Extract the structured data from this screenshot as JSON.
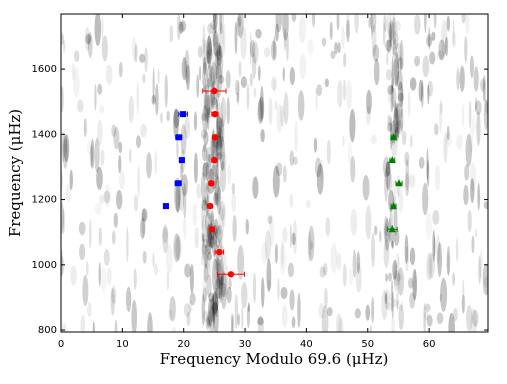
{
  "chart_data": {
    "type": "scatter",
    "xlabel": "Frequency Modulo 69.6 (μHz)",
    "ylabel": "Frequency (μHz)",
    "xlim": [
      0,
      69.6
    ],
    "xticks": [
      0,
      10,
      20,
      30,
      40,
      50,
      60
    ],
    "ylim": [
      794,
      1769
    ],
    "yticks": [
      800,
      1000,
      1200,
      1400,
      1600
    ],
    "series": [
      {
        "color": "#0000ff",
        "marker": "square",
        "x": [
          19.9,
          19.2,
          19.7,
          19.1,
          17.1
        ],
        "values": [
          1462,
          1391,
          1321,
          1250,
          1180
        ],
        "xerr": [
          0.7,
          0.5,
          0.4,
          0.5,
          0.4
        ]
      },
      {
        "color": "#ff0000",
        "marker": "circle",
        "x": [
          25.0,
          25.1,
          25.1,
          25.0,
          24.5,
          24.3,
          24.6,
          25.8,
          27.7
        ],
        "values": [
          1533,
          1462,
          1391,
          1321,
          1250,
          1180,
          1109,
          1039,
          971
        ],
        "xerr": [
          1.9,
          0.5,
          0.4,
          0.4,
          0.4,
          0.4,
          0.4,
          0.7,
          2.2
        ]
      },
      {
        "color": "#008000",
        "marker": "triangle",
        "x": [
          54.2,
          54.0,
          55.1,
          54.2,
          54.0
        ],
        "values": [
          1391,
          1321,
          1250,
          1180,
          1109
        ],
        "xerr": [
          0.4,
          0.4,
          0.5,
          0.4,
          0.8
        ]
      }
    ]
  }
}
